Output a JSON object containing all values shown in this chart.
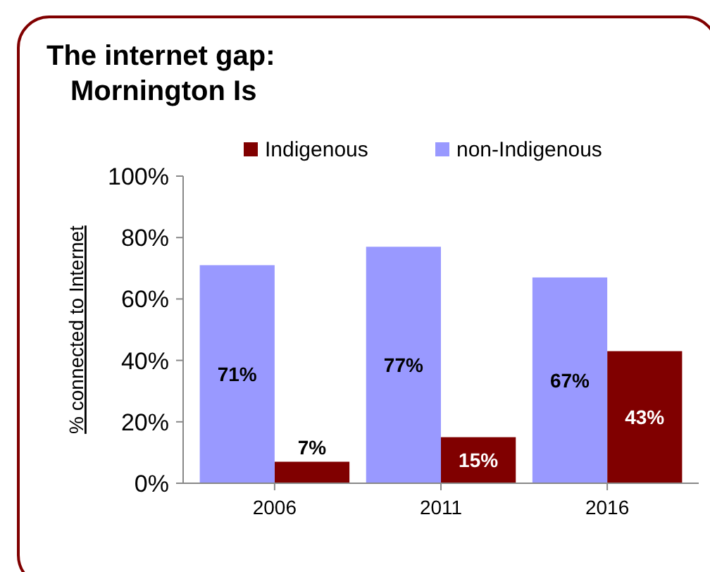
{
  "chart_data": {
    "type": "bar",
    "title": "The internet gap:\nMornington Is",
    "ylabel": "% connected to Internet",
    "categories": [
      "2006",
      "2011",
      "2016"
    ],
    "series": [
      {
        "name": "Indigenous",
        "color": "#800000",
        "values": [
          7,
          15,
          43
        ],
        "value_labels": [
          "7%",
          "15%",
          "43%"
        ]
      },
      {
        "name": "non-Indigenous",
        "color": "#9999ff",
        "values": [
          71,
          77,
          67
        ],
        "value_labels": [
          "71%",
          "77%",
          "67%"
        ]
      }
    ],
    "ylim": [
      0,
      100
    ],
    "yticks": [
      {
        "value": 0,
        "label": "0%"
      },
      {
        "value": 20,
        "label": "20%"
      },
      {
        "value": 40,
        "label": "40%"
      },
      {
        "value": 60,
        "label": "60%"
      },
      {
        "value": 80,
        "label": "80%"
      },
      {
        "value": 100,
        "label": "100%"
      }
    ],
    "legend": "top",
    "grid": false
  }
}
